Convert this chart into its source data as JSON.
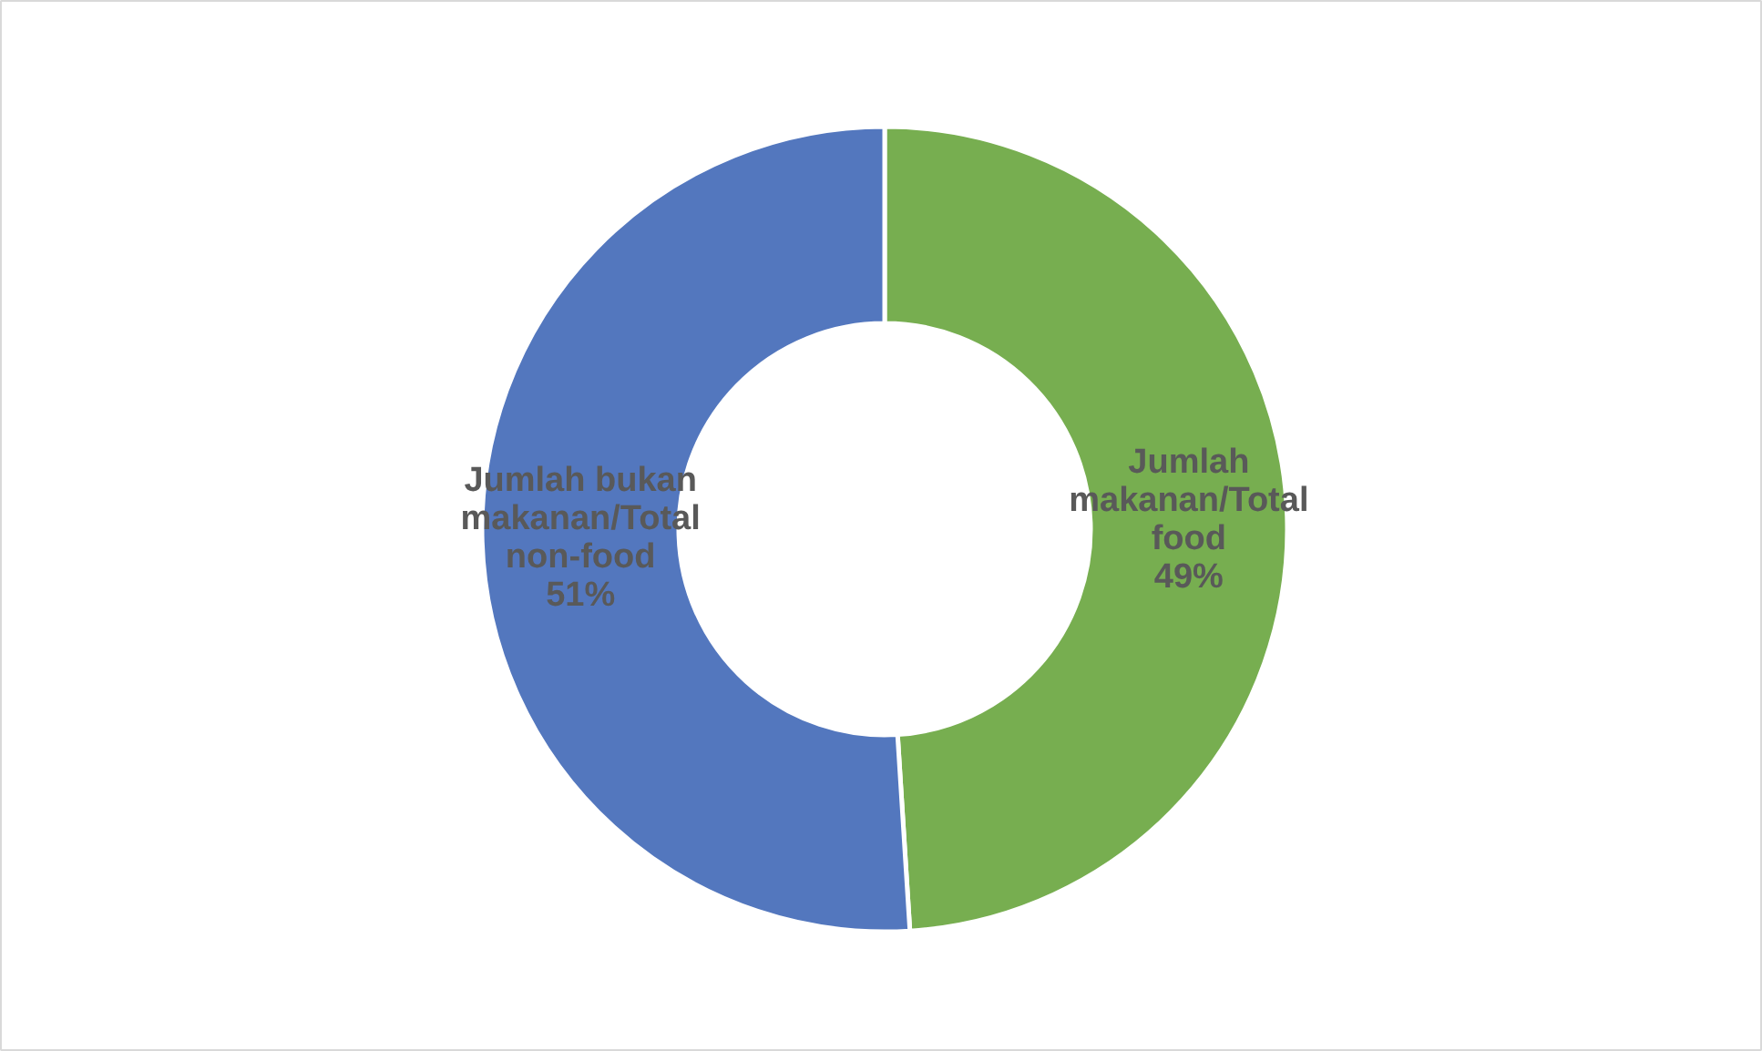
{
  "chart_data": {
    "type": "donut",
    "categories": [
      "Jumlah makanan/Total food",
      "Jumlah bukan makanan/Total non-food"
    ],
    "values": [
      49,
      51
    ],
    "colors": [
      "#77ae50",
      "#5377be"
    ],
    "value_labels": [
      "49%",
      "51%"
    ]
  }
}
